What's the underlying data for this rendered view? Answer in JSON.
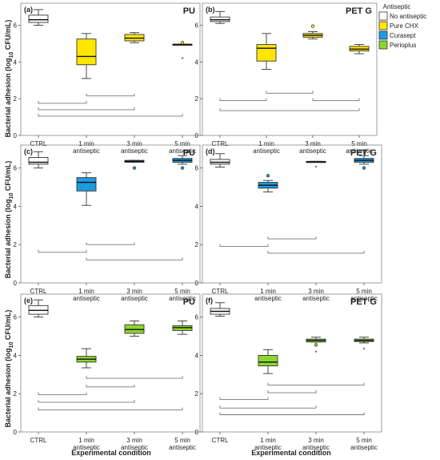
{
  "ylabel_main": "Bacterial adhesion (log",
  "ylabel_sub": "10",
  "ylabel_unit": " CFU/mL)",
  "xlabel": "Experimental condition",
  "legend": {
    "title": "Antiseptic",
    "entries": [
      {
        "name": "No antiseptic",
        "color": "#ffffff"
      },
      {
        "name": "Pure CHX",
        "color": "#ffe600"
      },
      {
        "name": "Curasept",
        "color": "#1e9be0"
      },
      {
        "name": "Perioplus",
        "color": "#8ed62d"
      }
    ]
  },
  "chart_data": [
    {
      "type": "box",
      "panel": "(a)",
      "title": "PU",
      "ylim": [
        0,
        7.2
      ],
      "yticks": [
        0,
        2,
        4,
        6
      ],
      "categories": [
        "CTRL",
        "1 min|antiseptic",
        "3 min|antiseptic",
        "5 min|antiseptic"
      ],
      "boxes": [
        {
          "min": 6.0,
          "q1": 6.15,
          "median": 6.3,
          "q3": 6.55,
          "max": 6.85,
          "color": "#ffffff",
          "outliers": []
        },
        {
          "min": 3.1,
          "q1": 3.85,
          "median": 4.3,
          "q3": 5.25,
          "max": 5.55,
          "color": "#ffe600",
          "outliers": []
        },
        {
          "min": 5.05,
          "q1": 5.15,
          "median": 5.3,
          "q3": 5.5,
          "max": 5.6,
          "color": "#ffe600",
          "outliers": []
        },
        {
          "min": 4.95,
          "q1": 4.95,
          "median": 4.95,
          "q3": 4.97,
          "max": 4.97,
          "color": "#ffe600",
          "outliers": [
            {
              "v": 5.05,
              "k": "o"
            },
            {
              "v": 4.15,
              "k": "*"
            }
          ]
        }
      ],
      "brackets": [
        [
          0,
          1,
          1.75
        ],
        [
          1,
          2,
          2.15
        ],
        [
          0,
          2,
          1.4
        ],
        [
          0,
          3,
          1.05
        ]
      ]
    },
    {
      "type": "box",
      "panel": "(b)",
      "title": "PET G",
      "ylim": [
        0,
        7.2
      ],
      "yticks": [
        0,
        2,
        4,
        6
      ],
      "categories": [
        "CTRL",
        "1 min|antiseptic",
        "3 min|antiseptic",
        "5 min|antiseptic"
      ],
      "boxes": [
        {
          "min": 6.1,
          "q1": 6.2,
          "median": 6.3,
          "q3": 6.45,
          "max": 6.75,
          "color": "#ffffff",
          "outliers": []
        },
        {
          "min": 3.6,
          "q1": 4.05,
          "median": 4.75,
          "q3": 4.95,
          "max": 5.55,
          "color": "#ffe600",
          "outliers": []
        },
        {
          "min": 5.25,
          "q1": 5.35,
          "median": 5.45,
          "q3": 5.55,
          "max": 5.65,
          "color": "#ffe600",
          "outliers": [
            {
              "v": 5.95,
              "k": "o"
            }
          ]
        },
        {
          "min": 4.45,
          "q1": 4.6,
          "median": 4.7,
          "q3": 4.85,
          "max": 4.95,
          "color": "#ffe600",
          "outliers": []
        }
      ],
      "brackets": [
        [
          0,
          1,
          1.9
        ],
        [
          1,
          2,
          2.3
        ],
        [
          2,
          3,
          1.9
        ],
        [
          0,
          3,
          1.35
        ]
      ]
    },
    {
      "type": "box",
      "panel": "(c)",
      "title": "PU",
      "ylim": [
        0,
        7.2
      ],
      "yticks": [
        0,
        2,
        4,
        6
      ],
      "categories": [
        "CTRL",
        "1 min|antiseptic",
        "3 min|antiseptic",
        "5 min|antiseptic"
      ],
      "boxes": [
        {
          "min": 6.0,
          "q1": 6.2,
          "median": 6.3,
          "q3": 6.55,
          "max": 6.85,
          "color": "#ffffff",
          "outliers": []
        },
        {
          "min": 4.05,
          "q1": 4.8,
          "median": 5.25,
          "q3": 5.5,
          "max": 5.75,
          "color": "#1e9be0",
          "outliers": []
        },
        {
          "min": 6.3,
          "q1": 6.3,
          "median": 6.35,
          "q3": 6.4,
          "max": 6.4,
          "color": "#1e9be0",
          "outliers": [
            {
              "v": 6.0,
              "k": "o"
            }
          ]
        },
        {
          "min": 6.2,
          "q1": 6.3,
          "median": 6.4,
          "q3": 6.5,
          "max": 6.65,
          "color": "#1e9be0",
          "outliers": [
            {
              "v": 6.0,
              "k": "o"
            }
          ]
        }
      ],
      "brackets": [
        [
          0,
          1,
          1.6
        ],
        [
          1,
          2,
          2.0
        ],
        [
          1,
          3,
          1.2
        ]
      ]
    },
    {
      "type": "box",
      "panel": "(d)",
      "title": "PET G",
      "ylim": [
        0,
        7.2
      ],
      "yticks": [
        0,
        2,
        4,
        6
      ],
      "categories": [
        "CTRL",
        "1 min|antiseptic",
        "3 min|antiseptic",
        "5 min|antiseptic"
      ],
      "boxes": [
        {
          "min": 6.05,
          "q1": 6.2,
          "median": 6.3,
          "q3": 6.45,
          "max": 6.75,
          "color": "#ffffff",
          "outliers": []
        },
        {
          "min": 4.75,
          "q1": 4.95,
          "median": 5.1,
          "q3": 5.25,
          "max": 5.35,
          "color": "#1e9be0",
          "outliers": [
            {
              "v": 5.6,
              "k": "o"
            }
          ]
        },
        {
          "min": 6.3,
          "q1": 6.3,
          "median": 6.32,
          "q3": 6.35,
          "max": 6.35,
          "color": "#1e9be0",
          "outliers": [
            {
              "v": 6.0,
              "k": "*"
            }
          ]
        },
        {
          "min": 6.2,
          "q1": 6.3,
          "median": 6.4,
          "q3": 6.5,
          "max": 6.65,
          "color": "#1e9be0",
          "outliers": [
            {
              "v": 6.0,
              "k": "o"
            }
          ]
        }
      ],
      "brackets": [
        [
          0,
          1,
          1.9
        ],
        [
          1,
          2,
          2.3
        ],
        [
          1,
          3,
          1.55
        ]
      ]
    },
    {
      "type": "box",
      "panel": "(e)",
      "title": "PU",
      "ylim": [
        0,
        7.2
      ],
      "yticks": [
        0,
        2,
        4,
        6
      ],
      "categories": [
        "CTRL",
        "1 min|antiseptic",
        "3 min|antiseptic",
        "5 min|antiseptic"
      ],
      "boxes": [
        {
          "min": 6.0,
          "q1": 6.15,
          "median": 6.35,
          "q3": 6.6,
          "max": 6.9,
          "color": "#ffffff",
          "outliers": []
        },
        {
          "min": 3.35,
          "q1": 3.65,
          "median": 3.8,
          "q3": 3.95,
          "max": 4.35,
          "color": "#8ed62d",
          "outliers": []
        },
        {
          "min": 5.0,
          "q1": 5.15,
          "median": 5.35,
          "q3": 5.6,
          "max": 5.8,
          "color": "#8ed62d",
          "outliers": []
        },
        {
          "min": 5.1,
          "q1": 5.3,
          "median": 5.45,
          "q3": 5.55,
          "max": 5.8,
          "color": "#8ed62d",
          "outliers": []
        }
      ],
      "brackets": [
        [
          1,
          3,
          2.8
        ],
        [
          1,
          2,
          2.35
        ],
        [
          0,
          1,
          1.95
        ],
        [
          0,
          2,
          1.55
        ],
        [
          0,
          3,
          1.15
        ]
      ]
    },
    {
      "type": "box",
      "panel": "(f)",
      "title": "PET G",
      "ylim": [
        0,
        7.2
      ],
      "yticks": [
        0,
        2,
        4,
        6
      ],
      "categories": [
        "CTRL",
        "1 min|antiseptic",
        "3 min|antiseptic",
        "5 min|antiseptic"
      ],
      "boxes": [
        {
          "min": 6.05,
          "q1": 6.15,
          "median": 6.3,
          "q3": 6.45,
          "max": 6.75,
          "color": "#ffffff",
          "outliers": []
        },
        {
          "min": 3.05,
          "q1": 3.45,
          "median": 3.65,
          "q3": 4.0,
          "max": 4.3,
          "color": "#8ed62d",
          "outliers": []
        },
        {
          "min": 4.7,
          "q1": 4.7,
          "median": 4.78,
          "q3": 4.85,
          "max": 4.95,
          "color": "#8ed62d",
          "outliers": [
            {
              "v": 4.55,
              "k": "o"
            },
            {
              "v": 4.15,
              "k": "*"
            }
          ]
        },
        {
          "min": 4.65,
          "q1": 4.72,
          "median": 4.78,
          "q3": 4.85,
          "max": 4.95,
          "color": "#8ed62d",
          "outliers": [
            {
              "v": 4.3,
              "k": "*"
            }
          ]
        }
      ],
      "brackets": [
        [
          1,
          3,
          2.45
        ],
        [
          1,
          2,
          2.05
        ],
        [
          0,
          1,
          1.7
        ],
        [
          0,
          2,
          1.25
        ],
        [
          0,
          3,
          0.9
        ]
      ]
    }
  ]
}
